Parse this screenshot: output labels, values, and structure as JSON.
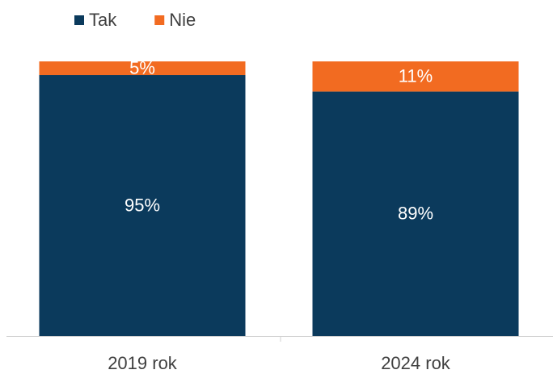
{
  "chart_data": {
    "type": "stacked_bar",
    "categories": [
      "2019 rok",
      "2024 rok"
    ],
    "series": [
      {
        "name": "Tak",
        "color": "#0b3a5c",
        "values": [
          95,
          89
        ],
        "value_labels": [
          "95%",
          "89%"
        ]
      },
      {
        "name": "Nie",
        "color": "#f26b21",
        "values": [
          5,
          11
        ],
        "value_labels": [
          "5%",
          "11%"
        ]
      }
    ],
    "ylim": [
      0,
      100
    ],
    "legend": "top-left"
  }
}
